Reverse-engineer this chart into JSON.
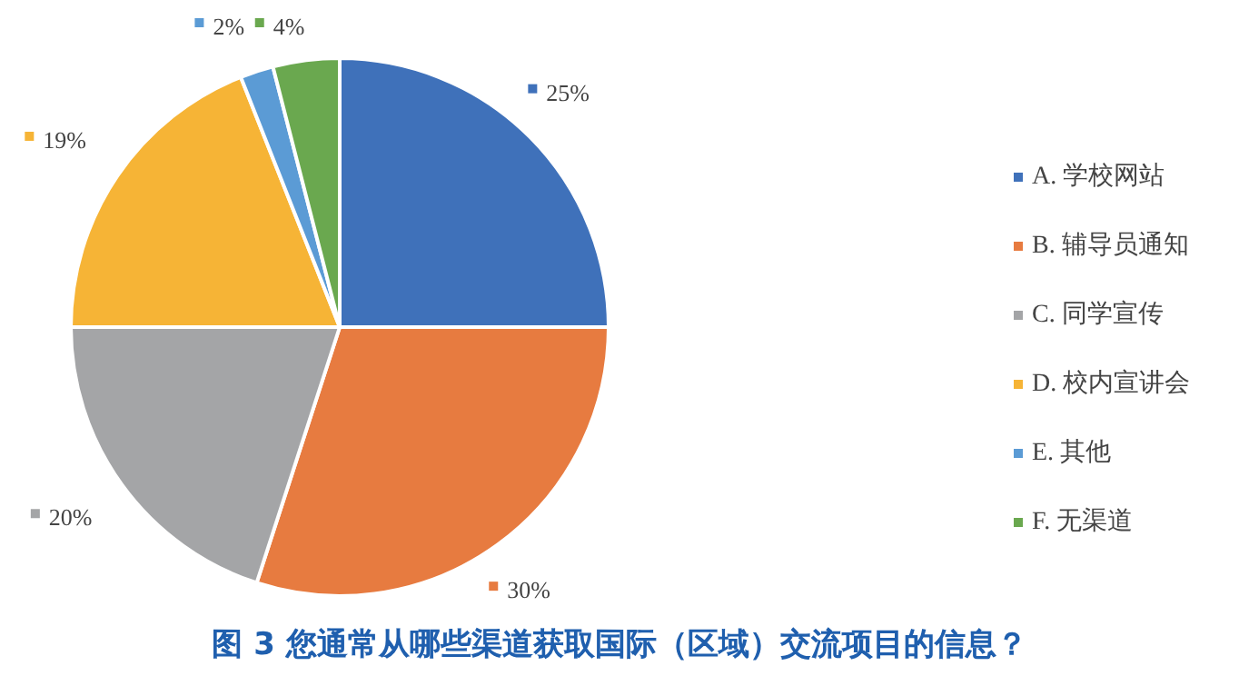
{
  "chart_data": {
    "type": "pie",
    "title": "图 3  您通常从哪些渠道获取国际（区域）交流项目的信息？",
    "categories": [
      "A. 学校网站",
      "B. 辅导员通知",
      "C. 同学宣传",
      "D. 校内宣讲会",
      "E. 其他",
      "F. 无渠道"
    ],
    "values": [
      25,
      30,
      20,
      19,
      2,
      4
    ],
    "value_labels": [
      "25%",
      "30%",
      "20%",
      "19%",
      "2%",
      "4%"
    ],
    "colors": [
      "#3f71ba",
      "#e77b40",
      "#a4a5a7",
      "#f6b436",
      "#5b9bd5",
      "#6aa84f"
    ],
    "legend": "right"
  }
}
